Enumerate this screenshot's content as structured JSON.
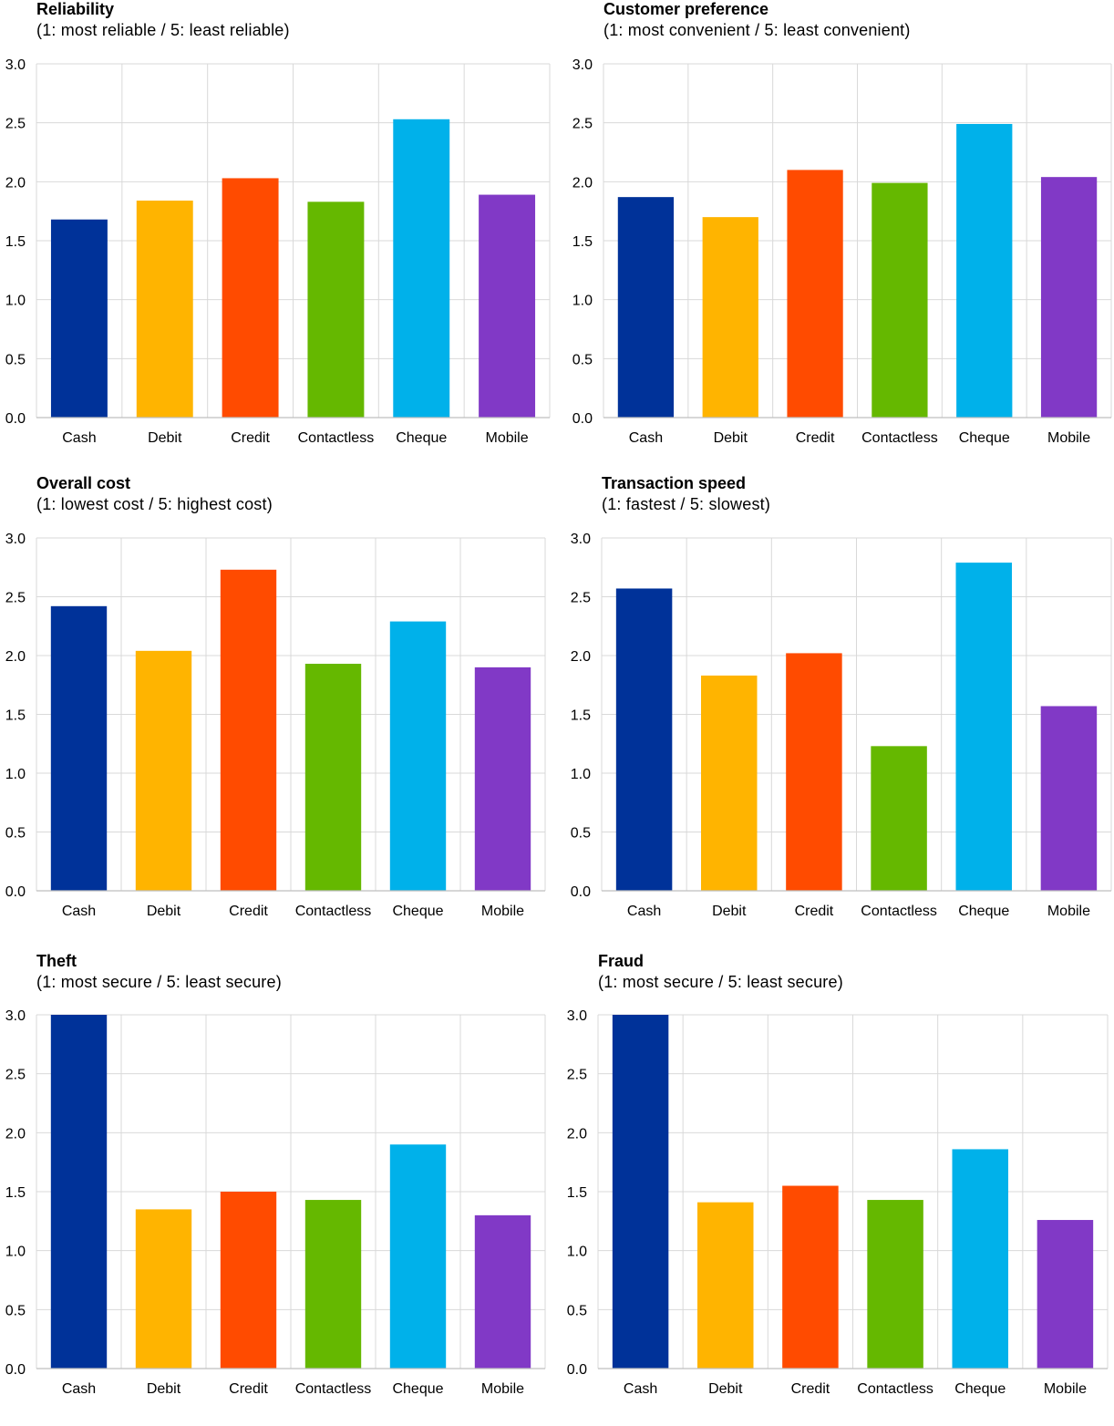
{
  "chart_data": [
    {
      "type": "bar",
      "title": "Reliability",
      "subtitle": "(1: most reliable / 5: least reliable)",
      "categories": [
        "Cash",
        "Debit",
        "Credit",
        "Contactless",
        "Cheque",
        "Mobile"
      ],
      "values": [
        1.68,
        1.84,
        2.03,
        1.83,
        2.53,
        1.89
      ],
      "ylim": [
        0,
        3.0
      ],
      "yticks": [
        "0.0",
        "0.5",
        "1.0",
        "1.5",
        "2.0",
        "2.5",
        "3.0"
      ],
      "grid": true,
      "legend": "none"
    },
    {
      "type": "bar",
      "title": "Customer preference",
      "subtitle": "(1: most convenient / 5: least convenient)",
      "categories": [
        "Cash",
        "Debit",
        "Credit",
        "Contactless",
        "Cheque",
        "Mobile"
      ],
      "values": [
        1.87,
        1.7,
        2.1,
        1.99,
        2.49,
        2.04
      ],
      "ylim": [
        0,
        3.0
      ],
      "yticks": [
        "0.0",
        "0.5",
        "1.0",
        "1.5",
        "2.0",
        "2.5",
        "3.0"
      ],
      "grid": true,
      "legend": "none"
    },
    {
      "type": "bar",
      "title": "Overall cost",
      "subtitle": "(1: lowest cost / 5: highest cost)",
      "categories": [
        "Cash",
        "Debit",
        "Credit",
        "Contactless",
        "Cheque",
        "Mobile"
      ],
      "values": [
        2.42,
        2.04,
        2.73,
        1.93,
        2.29,
        1.9
      ],
      "ylim": [
        0,
        3.0
      ],
      "yticks": [
        "0.0",
        "0.5",
        "1.0",
        "1.5",
        "2.0",
        "2.5",
        "3.0"
      ],
      "grid": true,
      "legend": "none"
    },
    {
      "type": "bar",
      "title": "Transaction speed",
      "subtitle": "(1: fastest / 5: slowest)",
      "categories": [
        "Cash",
        "Debit",
        "Credit",
        "Contactless",
        "Cheque",
        "Mobile"
      ],
      "values": [
        2.57,
        1.83,
        2.02,
        1.23,
        2.79,
        1.57
      ],
      "ylim": [
        0,
        3.0
      ],
      "yticks": [
        "0.0",
        "0.5",
        "1.0",
        "1.5",
        "2.0",
        "2.5",
        "3.0"
      ],
      "grid": true,
      "legend": "none"
    },
    {
      "type": "bar",
      "title": "Theft",
      "subtitle": "(1: most secure / 5: least secure)",
      "categories": [
        "Cash",
        "Debit",
        "Credit",
        "Contactless",
        "Cheque",
        "Mobile"
      ],
      "values": [
        3.0,
        1.35,
        1.5,
        1.43,
        1.9,
        1.3
      ],
      "ylim": [
        0,
        3.0
      ],
      "yticks": [
        "0.0",
        "0.5",
        "1.0",
        "1.5",
        "2.0",
        "2.5",
        "3.0"
      ],
      "grid": true,
      "legend": "none"
    },
    {
      "type": "bar",
      "title": "Fraud",
      "subtitle": "(1: most secure / 5: least secure)",
      "categories": [
        "Cash",
        "Debit",
        "Credit",
        "Contactless",
        "Cheque",
        "Mobile"
      ],
      "values": [
        3.0,
        1.41,
        1.55,
        1.43,
        1.86,
        1.26
      ],
      "ylim": [
        0,
        3.0
      ],
      "yticks": [
        "0.0",
        "0.5",
        "1.0",
        "1.5",
        "2.0",
        "2.5",
        "3.0"
      ],
      "grid": true,
      "legend": "none"
    }
  ],
  "colors": {
    "Cash": "#003299",
    "Debit": "#FFB400",
    "Credit": "#FF4B00",
    "Contactless": "#65B800",
    "Cheque": "#00B1EA",
    "Mobile": "#8139C6",
    "grid": "#D9D9D9",
    "axis": "#BFBFBF"
  }
}
